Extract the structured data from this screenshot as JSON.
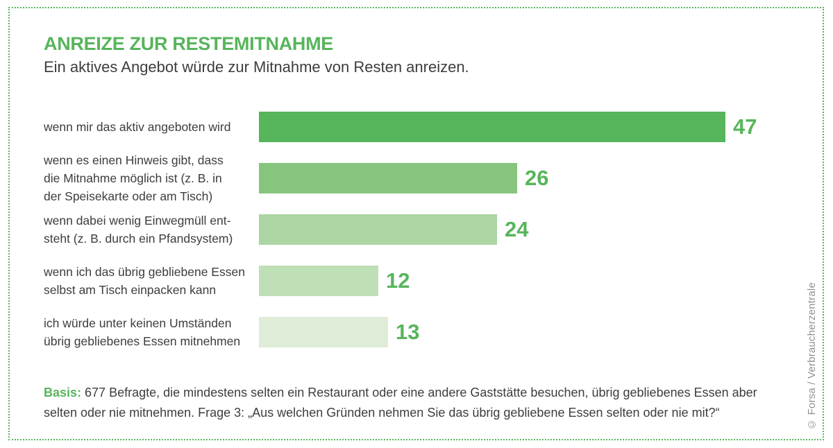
{
  "frame": {
    "border_color": "#57b55b"
  },
  "header": {
    "title": "ANREIZE ZUR RESTEMITNAHME",
    "subtitle": "Ein aktives Angebot würde zur Mitnahme von Resten anreizen."
  },
  "chart_data": {
    "type": "bar",
    "orientation": "horizontal",
    "title": "ANREIZE ZUR RESTEMITNAHME",
    "subtitle": "Ein aktives Angebot würde zur Mitnahme von Resten anreizen.",
    "xlabel": "",
    "ylabel": "",
    "xlim": [
      0,
      47
    ],
    "grid": false,
    "legend": false,
    "value_labels_position": "right-of-bar",
    "categories": [
      "wenn mir das aktiv angeboten wird",
      "wenn es einen Hinweis gibt, dass die Mitnahme möglich ist (z. B. in der Speisekarte oder am Tisch)",
      "wenn dabei wenig Einwegmüll entsteht (z. B. durch ein Pfandsystem)",
      "wenn ich das übrig gebliebene Essen selbst am Tisch einpacken kann",
      "ich würde unter keinen Umständen übrig gebliebenes Essen mitnehmen"
    ],
    "category_lines": [
      [
        "wenn mir das aktiv angeboten wird"
      ],
      [
        "wenn es einen Hinweis gibt, dass",
        "die Mitnahme möglich ist (z. B. in",
        "der Speisekarte oder am Tisch)"
      ],
      [
        "wenn dabei wenig Einwegmüll ent-",
        "steht (z. B. durch ein Pfandsystem)"
      ],
      [
        "wenn ich das übrig gebliebene Essen",
        "selbst am Tisch einpacken kann"
      ],
      [
        "ich würde unter keinen Umständen",
        "übrig gebliebenes Essen mitnehmen"
      ]
    ],
    "values": [
      47,
      26,
      24,
      12,
      13
    ],
    "bar_colors": [
      "#57b55b",
      "#87c57f",
      "#abd5a3",
      "#bfdfb6",
      "#dfecd8"
    ],
    "value_color": "#57b55b"
  },
  "footer": {
    "basis_label": "Basis:",
    "basis_text": "677 Befragte, die mindestens selten ein Restaurant oder eine andere Gaststätte besuchen, übrig gebliebenes Essen aber selten oder nie mitnehmen. Frage 3: „Aus welchen Gründen nehmen Sie das übrig gebliebene Essen selten oder nie mit?“",
    "credit": "© Forsa / Verbraucherzentrale"
  }
}
